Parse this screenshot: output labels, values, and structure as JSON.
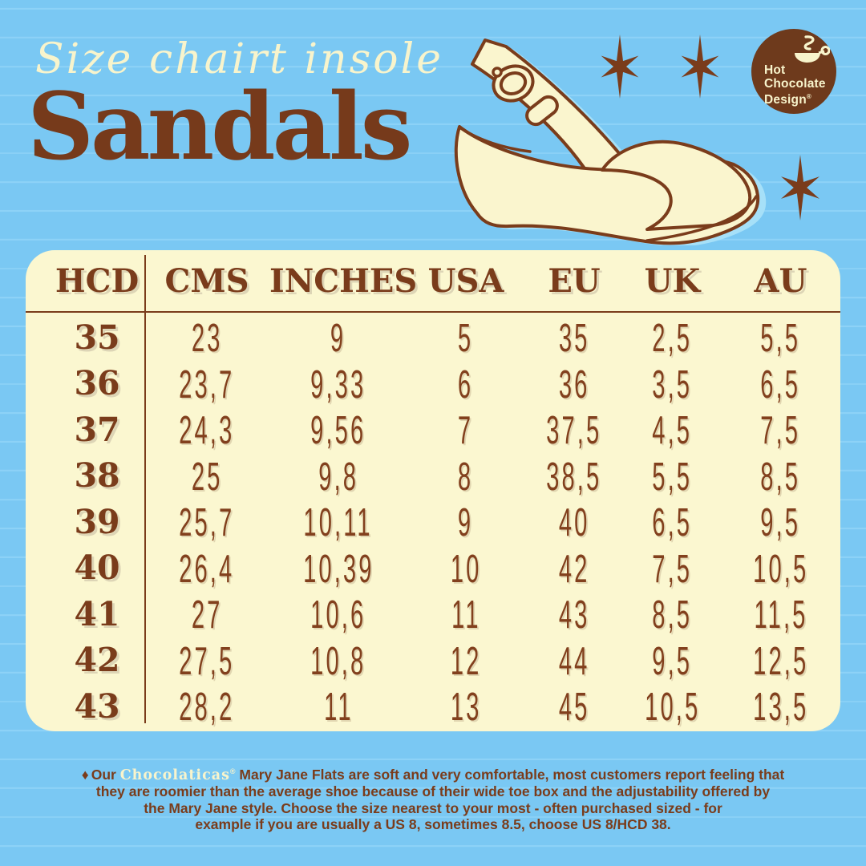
{
  "colors": {
    "background_blue": "#7AC8F3",
    "line_blue": "#8DD2F7",
    "brand_brown": "#7A3C1B",
    "cream": "#F8F4CC",
    "table_cream": "#FBF7D0",
    "shoe_shadow_blue": "#A6E0F8"
  },
  "header": {
    "script_title": "Size chairt insole",
    "main_title": "Sandals"
  },
  "logo": {
    "line1": "Hot",
    "line2": "Chocolate",
    "line3": "Design",
    "reg": "®"
  },
  "table": {
    "columns": [
      "HCD",
      "CMS",
      "INCHES",
      "USA",
      "EU",
      "UK",
      "AU"
    ],
    "rows": [
      [
        "35",
        "23",
        "9",
        "5",
        "35",
        "2,5",
        "5,5"
      ],
      [
        "36",
        "23,7",
        "9,33",
        "6",
        "36",
        "3,5",
        "6,5"
      ],
      [
        "37",
        "24,3",
        "9,56",
        "7",
        "37,5",
        "4,5",
        "7,5"
      ],
      [
        "38",
        "25",
        "9,8",
        "8",
        "38,5",
        "5,5",
        "8,5"
      ],
      [
        "39",
        "25,7",
        "10,11",
        "9",
        "40",
        "6,5",
        "9,5"
      ],
      [
        "40",
        "26,4",
        "10,39",
        "10",
        "42",
        "7,5",
        "10,5"
      ],
      [
        "41",
        "27",
        "10,6",
        "11",
        "43",
        "8,5",
        "11,5"
      ],
      [
        "42",
        "27,5",
        "10,8",
        "12",
        "44",
        "9,5",
        "12,5"
      ],
      [
        "43",
        "28,2",
        "11",
        "13",
        "45",
        "10,5",
        "13,5"
      ]
    ]
  },
  "footer": {
    "bullet": "♦",
    "line1_pre": "Our ",
    "brand": "Chocolaticas",
    "brand_reg": "®",
    "line1_post": " Mary Jane Flats are soft and very comfortable, most customers report feeling that",
    "line2": "they are roomier than the average shoe because of their wide toe box and the adjustability offered by",
    "line3": "the Mary Jane style. Choose the size nearest to your most - often  purchased sized - for",
    "line4": "example if you are usually a US 8, sometimes 8.5, choose US 8/HCD 38."
  }
}
